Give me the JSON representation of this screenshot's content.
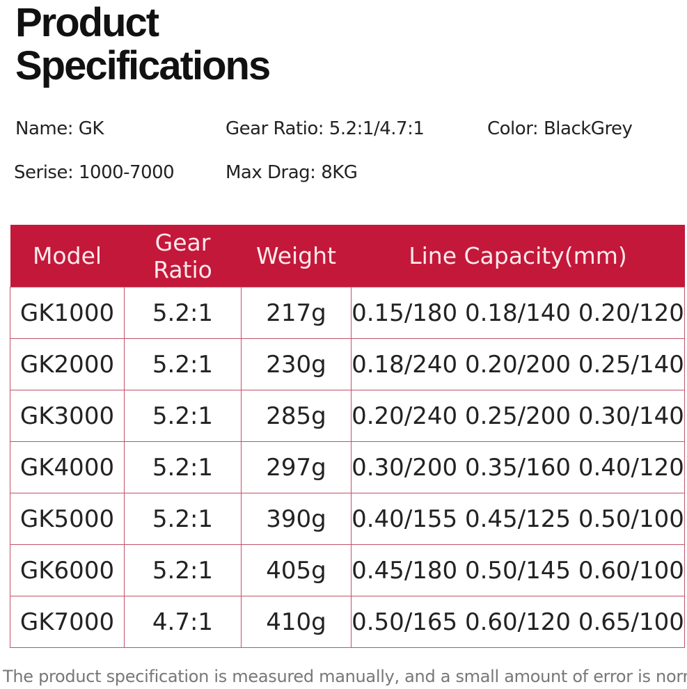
{
  "header": {
    "title_line1": "Product",
    "title_line2": "Specifications"
  },
  "specs": {
    "name": "Name: GK",
    "gear_ratio": "Gear Ratio: 5.2:1/4.7:1",
    "color": "Color: BlackGrey",
    "series": "Serise: 1000-7000",
    "max_drag": "Max Drag: 8KG"
  },
  "table": {
    "header": [
      "Model",
      "Gear Ratio",
      "Weight",
      "Line Capacity(mm)"
    ],
    "rows": [
      [
        "GK1000",
        "5.2:1",
        "217g",
        "0.15/180 0.18/140 0.20/120"
      ],
      [
        "GK2000",
        "5.2:1",
        "230g",
        "0.18/240 0.20/200 0.25/140"
      ],
      [
        "GK3000",
        "5.2:1",
        "285g",
        "0.20/240 0.25/200 0.30/140"
      ],
      [
        "GK4000",
        "5.2:1",
        "297g",
        "0.30/200 0.35/160 0.40/120"
      ],
      [
        "GK5000",
        "5.2:1",
        "390g",
        "0.40/155 0.45/125 0.50/100"
      ],
      [
        "GK6000",
        "5.2:1",
        "405g",
        "0.45/180 0.50/145 0.60/100"
      ],
      [
        "GK7000",
        "4.7:1",
        "410g",
        "0.50/165 0.60/120 0.65/100"
      ]
    ]
  },
  "footer": {
    "note": "The product specification is measured manually, and a small amount of error is normal"
  }
}
